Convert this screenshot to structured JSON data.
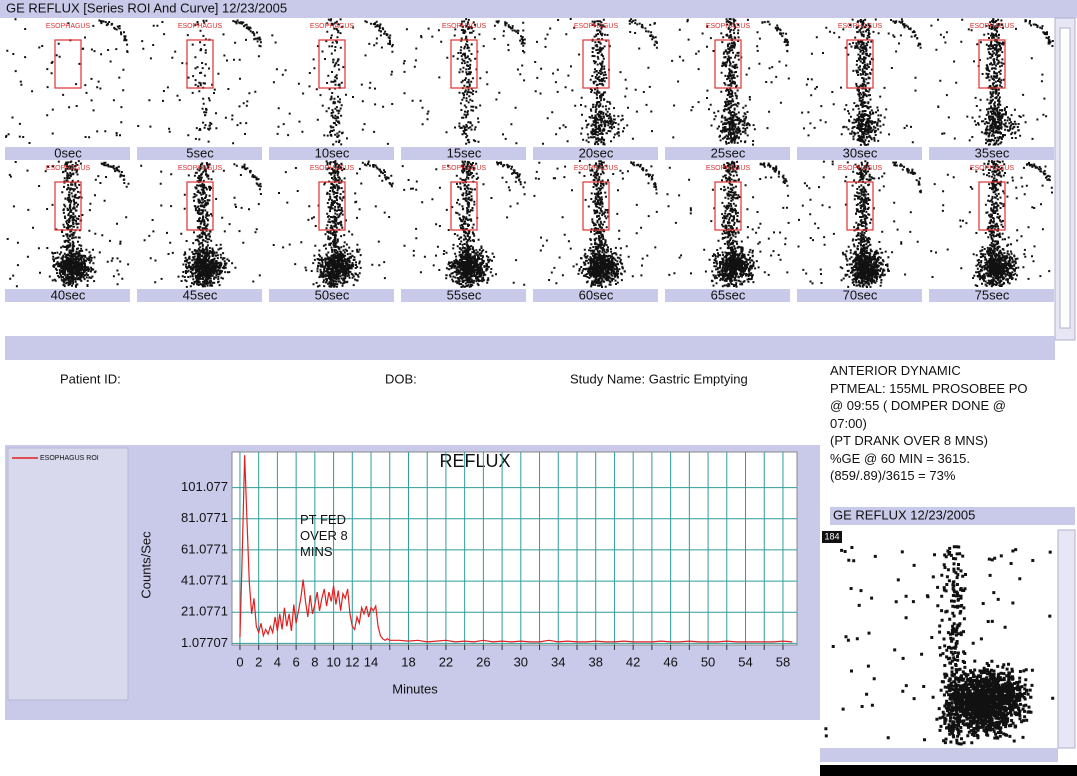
{
  "header": {
    "title": "GE REFLUX [Series ROI And Curve] 12/23/2005"
  },
  "frames": {
    "roi_label": "ESOPHAGUS",
    "labels": [
      "0sec",
      "5sec",
      "10sec",
      "15sec",
      "20sec",
      "25sec",
      "30sec",
      "35sec",
      "40sec",
      "45sec",
      "50sec",
      "55sec",
      "60sec",
      "65sec",
      "70sec",
      "75sec"
    ]
  },
  "patient": {
    "id": "Patient ID:",
    "dob": "DOB:",
    "study": "Study Name: Gastric Emptying"
  },
  "notes": [
    "ANTERIOR DYNAMIC",
    "PTMEAL: 155ML PROSOBEE PO",
    "@ 09:55 ( DOMPER DONE @",
    "07:00)",
    "(PT DRANK OVER 8 MNS)",
    "%GE @ 60 MIN = 3615.",
    "(859/.89)/3615 = 73%"
  ],
  "preview": {
    "title": "GE REFLUX 12/23/2005",
    "badge": "184"
  },
  "chart_data": {
    "type": "line",
    "title": "REFLUX",
    "x_label": "Minutes",
    "y_label": "Counts/Sec",
    "annotation": "PT FED OVER 8 MINS",
    "xlim": [
      -0.85,
      59.5
    ],
    "ylim": [
      0,
      124
    ],
    "xticks": [
      0,
      2,
      4,
      6,
      8,
      10,
      12,
      14,
      18,
      22,
      26,
      30,
      34,
      38,
      42,
      46,
      50,
      54,
      58
    ],
    "xgrid": [
      0,
      2,
      4,
      6,
      8,
      10,
      12,
      14,
      16,
      18,
      20,
      22,
      24,
      26,
      28,
      30,
      32,
      34,
      36,
      38,
      40,
      42,
      44,
      46,
      48,
      50,
      52,
      54,
      56,
      58
    ],
    "yticks": [
      1.07707,
      21.0771,
      41.0771,
      61.0771,
      81.0771,
      101.077
    ],
    "grid": true,
    "grid_color": "#2f9c9c",
    "legend": "top-left",
    "x": [
      0,
      0.25,
      0.5,
      0.75,
      1,
      1.25,
      1.5,
      1.75,
      2,
      2.25,
      2.5,
      2.75,
      3,
      3.25,
      3.5,
      3.75,
      4,
      4.25,
      4.5,
      4.75,
      5,
      5.25,
      5.5,
      5.75,
      6,
      6.25,
      6.5,
      6.75,
      7,
      7.25,
      7.5,
      7.75,
      8,
      8.25,
      8.5,
      8.75,
      9,
      9.25,
      9.5,
      9.75,
      10,
      10.25,
      10.5,
      10.75,
      11,
      11.25,
      11.5,
      11.75,
      12,
      12.25,
      12.5,
      12.75,
      13,
      13.25,
      13.5,
      13.75,
      14,
      14.25,
      14.5,
      14.75,
      15,
      15.25,
      15.5,
      15.75,
      16,
      17,
      18,
      19,
      20,
      21,
      22,
      23,
      24,
      25,
      26,
      27,
      28,
      29,
      30,
      31,
      32,
      33,
      34,
      35,
      36,
      37,
      38,
      39,
      40,
      41,
      42,
      43,
      44,
      45,
      46,
      47,
      48,
      49,
      50,
      51,
      52,
      53,
      54,
      55,
      56,
      57,
      58,
      59
    ],
    "series": [
      {
        "name": "ESOPHAGUS ROI",
        "color": "#e02020",
        "values": [
          5,
          60,
          122,
          80,
          40,
          20,
          30,
          12,
          8,
          14,
          6,
          10,
          7,
          12,
          8,
          18,
          9,
          20,
          10,
          24,
          12,
          20,
          9,
          26,
          14,
          22,
          30,
          42,
          28,
          18,
          32,
          20,
          26,
          34,
          22,
          30,
          36,
          25,
          34,
          28,
          38,
          26,
          35,
          22,
          33,
          30,
          36,
          20,
          12,
          10,
          18,
          14,
          24,
          20,
          25,
          18,
          24,
          22,
          25,
          12,
          6,
          4,
          3,
          4,
          3,
          3,
          2.5,
          3,
          2,
          2.5,
          3,
          2,
          2.5,
          2,
          3,
          2,
          2.5,
          2,
          2.5,
          2,
          2,
          3,
          2,
          2.5,
          2,
          2,
          2.5,
          2,
          2,
          2.5,
          2,
          2,
          2,
          2.5,
          2,
          2,
          2.5,
          2,
          2,
          2,
          2.5,
          2,
          2,
          2,
          2,
          2,
          2.5,
          2
        ]
      }
    ]
  }
}
